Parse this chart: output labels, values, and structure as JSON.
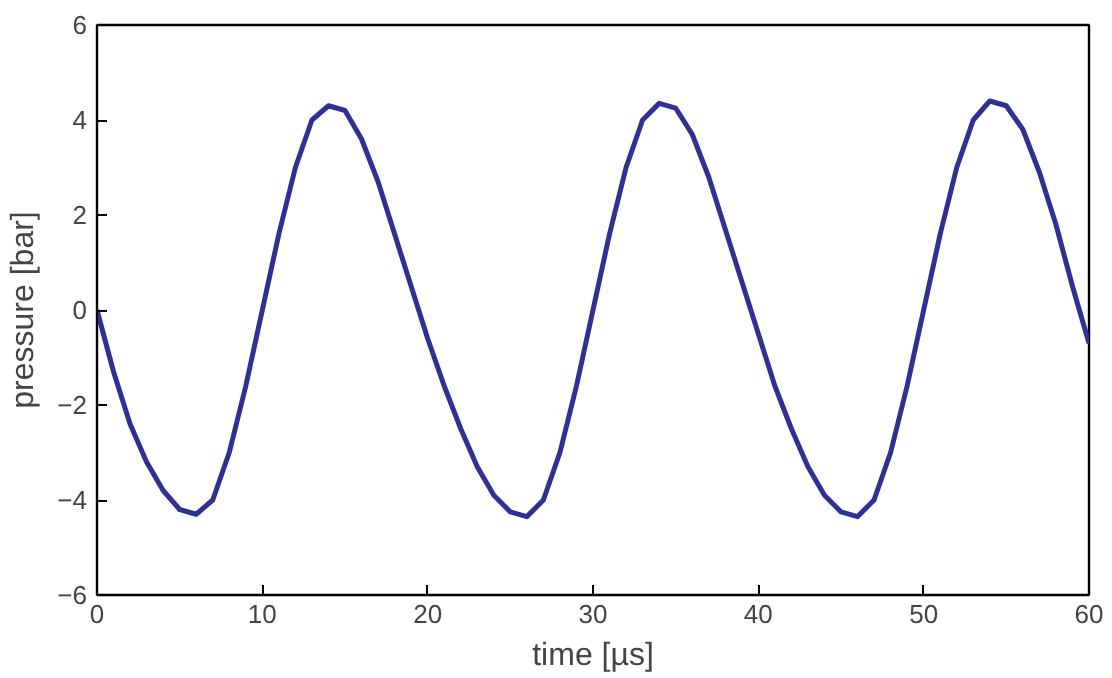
{
  "chart_data": {
    "type": "line",
    "xlabel": "time [µs]",
    "ylabel": "pressure [bar]",
    "xlim": [
      0,
      60
    ],
    "ylim": [
      -6,
      6
    ],
    "xticks": [
      0,
      10,
      20,
      30,
      40,
      50,
      60
    ],
    "yticks": [
      -6,
      -4,
      -2,
      0,
      2,
      4,
      6
    ],
    "grid": false,
    "marker": "none",
    "line_style": "solid",
    "x": [
      0,
      1,
      2,
      3,
      4,
      5,
      6,
      7,
      8,
      9,
      10,
      11,
      12,
      13,
      14,
      15,
      16,
      17,
      18,
      19,
      20,
      21,
      22,
      23,
      24,
      25,
      26,
      27,
      28,
      29,
      30,
      31,
      32,
      33,
      34,
      35,
      36,
      37,
      38,
      39,
      40,
      41,
      42,
      43,
      44,
      45,
      46,
      47,
      48,
      49,
      50,
      51,
      52,
      53,
      54,
      55,
      56,
      57,
      58,
      59,
      60
    ],
    "series": [
      {
        "color": "#2e3192",
        "values": [
          0,
          -1.3,
          -2.4,
          -3.2,
          -3.8,
          -4.2,
          -4.3,
          -4.0,
          -3.0,
          -1.6,
          0.0,
          1.6,
          3.0,
          4.0,
          4.3,
          4.2,
          3.6,
          2.7,
          1.6,
          0.5,
          -0.6,
          -1.6,
          -2.5,
          -3.3,
          -3.9,
          -4.25,
          -4.35,
          -4.0,
          -3.0,
          -1.6,
          0.0,
          1.6,
          3.0,
          4.0,
          4.35,
          4.25,
          3.7,
          2.8,
          1.7,
          0.6,
          -0.5,
          -1.6,
          -2.5,
          -3.3,
          -3.9,
          -4.25,
          -4.35,
          -4.0,
          -3.0,
          -1.6,
          0.0,
          1.6,
          3.0,
          4.0,
          4.4,
          4.3,
          3.8,
          2.9,
          1.8,
          0.5,
          -0.7
        ]
      }
    ]
  }
}
